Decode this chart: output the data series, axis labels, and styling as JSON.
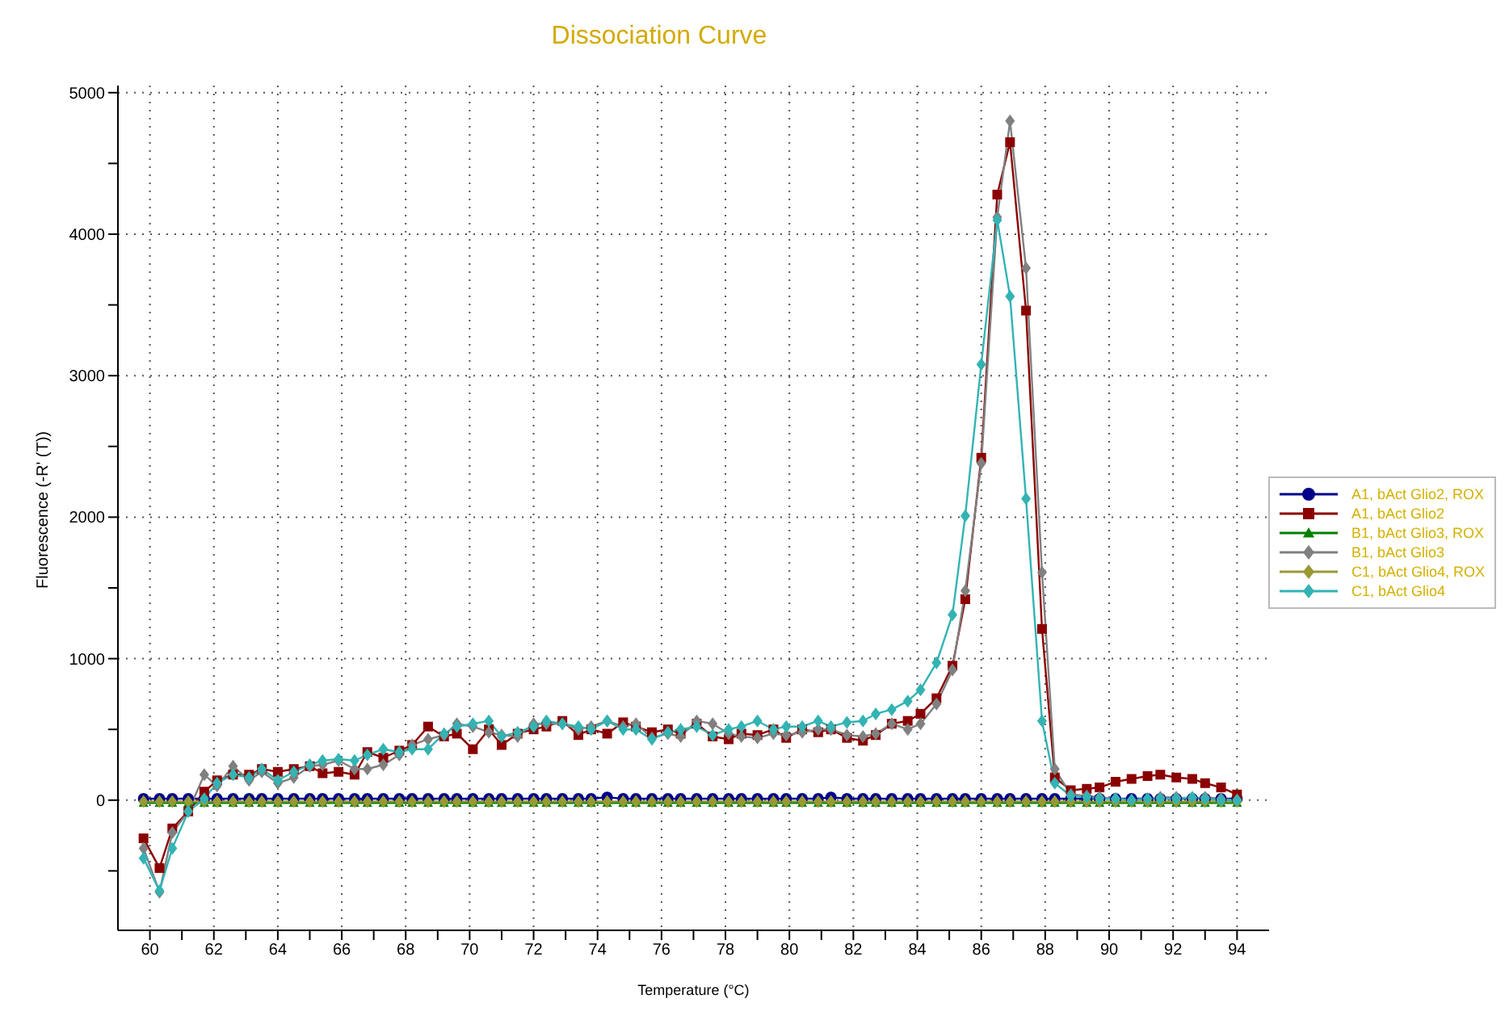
{
  "chart_data": {
    "type": "line",
    "title": "Dissociation Curve",
    "xlabel": "Temperature (°C)",
    "ylabel": "Fluorescence (-R' (T))",
    "x": [
      59.8,
      60.3,
      60.7,
      61.2,
      61.7,
      62.1,
      62.6,
      63.1,
      63.5,
      64.0,
      64.5,
      65.0,
      65.4,
      65.9,
      66.4,
      66.8,
      67.3,
      67.8,
      68.2,
      68.7,
      69.2,
      69.6,
      70.1,
      70.6,
      71.0,
      71.5,
      72.0,
      72.4,
      72.9,
      73.4,
      73.8,
      74.3,
      74.8,
      75.2,
      75.7,
      76.2,
      76.6,
      77.1,
      77.6,
      78.1,
      78.5,
      79.0,
      79.5,
      79.9,
      80.4,
      80.9,
      81.3,
      81.8,
      82.3,
      82.7,
      83.2,
      83.7,
      84.1,
      84.6,
      85.1,
      85.5,
      86.0,
      86.5,
      86.9,
      87.4,
      87.9,
      88.3,
      88.8,
      89.3,
      89.7,
      90.2,
      90.7,
      91.2,
      91.6,
      92.1,
      92.6,
      93.0,
      93.5,
      94.0
    ],
    "series": [
      {
        "name": "A1, bAct Glio2, ROX",
        "color": "#00008b",
        "marker": "circle",
        "values": [
          10,
          10,
          10,
          10,
          10,
          10,
          10,
          10,
          10,
          10,
          10,
          10,
          10,
          10,
          10,
          10,
          10,
          10,
          10,
          10,
          10,
          10,
          10,
          10,
          10,
          10,
          10,
          10,
          10,
          10,
          10,
          20,
          10,
          10,
          10,
          10,
          10,
          10,
          10,
          10,
          10,
          10,
          10,
          10,
          10,
          10,
          20,
          10,
          10,
          10,
          10,
          10,
          10,
          10,
          10,
          10,
          10,
          10,
          10,
          10,
          10,
          10,
          10,
          10,
          10,
          10,
          10,
          10,
          10,
          10,
          10,
          10,
          10,
          10
        ]
      },
      {
        "name": "A1, bAct Glio2",
        "color": "#8b0000",
        "marker": "square",
        "values": [
          -270,
          -480,
          -200,
          -80,
          60,
          140,
          180,
          180,
          220,
          200,
          220,
          240,
          190,
          200,
          180,
          340,
          300,
          350,
          390,
          520,
          450,
          470,
          360,
          500,
          390,
          470,
          500,
          520,
          560,
          460,
          500,
          470,
          550,
          520,
          480,
          500,
          470,
          540,
          450,
          430,
          470,
          460,
          500,
          440,
          500,
          480,
          500,
          440,
          420,
          460,
          540,
          560,
          610,
          720,
          950,
          1420,
          2420,
          4280,
          4650,
          3460,
          1210,
          160,
          70,
          80,
          90,
          130,
          150,
          170,
          180,
          160,
          150,
          120,
          90,
          40
        ]
      },
      {
        "name": "B1, bAct Glio3, ROX",
        "color": "#008000",
        "marker": "triangle",
        "values": [
          -20,
          -20,
          -20,
          -20,
          -20,
          -20,
          -20,
          -20,
          -20,
          -20,
          -20,
          -20,
          -20,
          -20,
          -20,
          -20,
          -20,
          -20,
          -20,
          -20,
          -20,
          -20,
          -20,
          -20,
          -20,
          -20,
          -20,
          -20,
          -20,
          -20,
          -20,
          -20,
          -20,
          -20,
          -20,
          -20,
          -20,
          -20,
          -20,
          -20,
          -20,
          -20,
          -20,
          -20,
          -20,
          -20,
          -20,
          -20,
          -20,
          -20,
          -20,
          -20,
          -20,
          -20,
          -20,
          -20,
          -20,
          -20,
          -20,
          -20,
          -20,
          -20,
          -20,
          -20,
          -20,
          -20,
          -20,
          -20,
          -20,
          -20,
          -20,
          -20,
          -20,
          -20
        ]
      },
      {
        "name": "B1, bAct Glio3",
        "color": "#808080",
        "marker": "diamond",
        "values": [
          -340,
          -650,
          -230,
          -80,
          180,
          100,
          240,
          140,
          200,
          120,
          160,
          240,
          250,
          280,
          220,
          220,
          250,
          320,
          390,
          430,
          460,
          540,
          520,
          480,
          460,
          450,
          540,
          540,
          540,
          500,
          520,
          560,
          520,
          540,
          440,
          470,
          450,
          560,
          540,
          470,
          450,
          440,
          470,
          460,
          480,
          500,
          500,
          460,
          450,
          470,
          540,
          500,
          540,
          680,
          920,
          1480,
          2380,
          4120,
          4800,
          3760,
          1610,
          220,
          40,
          30,
          20,
          10,
          0,
          10,
          20,
          20,
          10,
          20,
          10,
          0
        ]
      },
      {
        "name": "C1, bAct Glio4, ROX",
        "color": "#999933",
        "marker": "diamond",
        "values": [
          -10,
          -10,
          -10,
          -10,
          -10,
          -10,
          -10,
          -10,
          -10,
          -10,
          -10,
          -10,
          -10,
          -10,
          -10,
          -10,
          -10,
          -10,
          -10,
          -10,
          -10,
          -10,
          -10,
          -10,
          -10,
          -10,
          -10,
          -10,
          -10,
          -10,
          -10,
          -10,
          -10,
          -10,
          -10,
          -10,
          -10,
          -10,
          -10,
          -10,
          -10,
          -10,
          -10,
          -10,
          -10,
          -10,
          -10,
          -10,
          -10,
          -10,
          -10,
          -10,
          -10,
          -10,
          -10,
          -10,
          -10,
          -10,
          -10,
          -10,
          -10,
          -10,
          -10,
          -10,
          -10,
          -10,
          -10,
          -10,
          -10,
          -10,
          -10,
          -10,
          -10,
          -10
        ]
      },
      {
        "name": "C1, bAct Glio4",
        "color": "#33b3b3",
        "marker": "diamond",
        "values": [
          -410,
          -640,
          -340,
          -80,
          10,
          120,
          180,
          160,
          220,
          140,
          200,
          250,
          280,
          290,
          280,
          320,
          360,
          340,
          360,
          360,
          470,
          520,
          540,
          560,
          450,
          480,
          520,
          560,
          540,
          520,
          500,
          560,
          500,
          500,
          430,
          480,
          500,
          520,
          460,
          500,
          520,
          560,
          500,
          520,
          520,
          560,
          520,
          550,
          560,
          610,
          640,
          700,
          780,
          970,
          1310,
          2010,
          3080,
          4100,
          3560,
          2130,
          560,
          120,
          30,
          20,
          10,
          10,
          0,
          10,
          10,
          10,
          20,
          10,
          0,
          0
        ]
      }
    ],
    "xlim": [
      59,
      95
    ],
    "xticks": [
      60,
      {
        "value": 61,
        "label": null
      },
      62,
      {
        "value": 63,
        "label": null
      },
      64,
      {
        "value": 65,
        "label": null
      },
      66,
      {
        "value": 67,
        "label": null
      },
      68,
      {
        "value": 69,
        "label": null
      },
      70,
      {
        "value": 71,
        "label": null
      },
      72,
      {
        "value": 73,
        "label": null
      },
      74,
      {
        "value": 75,
        "label": null
      },
      76,
      {
        "value": 77,
        "label": null
      },
      78,
      {
        "value": 79,
        "label": null
      },
      80,
      {
        "value": 81,
        "label": null
      },
      82,
      {
        "value": 83,
        "label": null
      },
      84,
      {
        "value": 85,
        "label": null
      },
      86,
      {
        "value": 87,
        "label": null
      },
      88,
      {
        "value": 89,
        "label": null
      },
      90,
      {
        "value": 91,
        "label": null
      },
      92,
      {
        "value": 93,
        "label": null
      },
      94
    ],
    "ylim": [
      -920,
      5050
    ],
    "yticks": [
      {
        "value": -500,
        "label": null
      },
      0,
      {
        "value": 500,
        "label": null
      },
      1000,
      {
        "value": 1500,
        "label": null
      },
      2000,
      {
        "value": 2500,
        "label": null
      },
      3000,
      {
        "value": 3500,
        "label": null
      },
      4000,
      {
        "value": 4500,
        "label": null
      },
      5000
    ],
    "grid": true,
    "legend": "right",
    "line_style": "solid"
  }
}
